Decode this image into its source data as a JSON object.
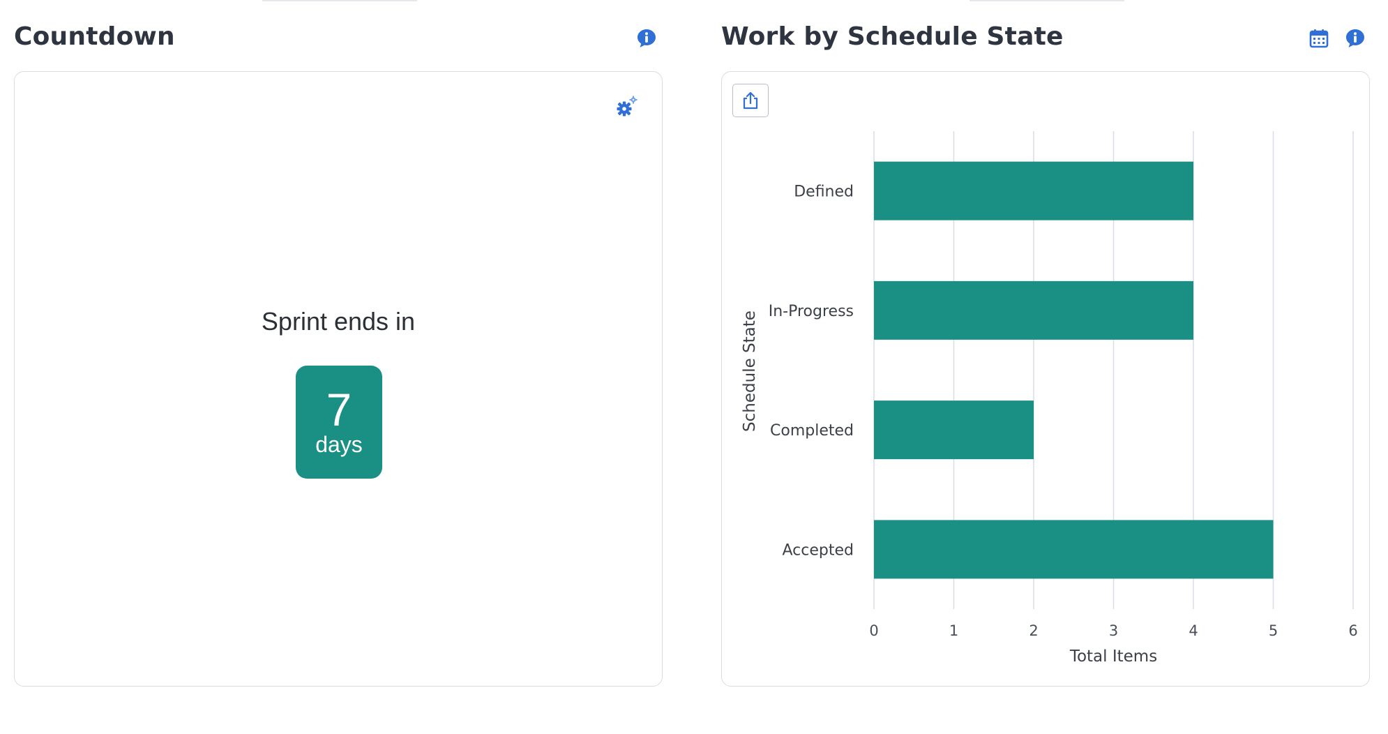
{
  "countdown": {
    "title": "Countdown",
    "label": "Sprint ends in",
    "days_value": "7",
    "days_unit": "days",
    "info_icon": "info-bubble-icon",
    "settings_icon": "gear-icon"
  },
  "schedule": {
    "title": "Work by Schedule State",
    "calendar_icon": "calendar-icon",
    "info_icon": "info-bubble-icon",
    "export_icon": "export-icon"
  },
  "colors": {
    "accent": "#1a8f84",
    "icon_blue": "#2f6fd6",
    "title_text": "#2e3440",
    "border": "#d8dce6"
  },
  "chart_data": {
    "type": "bar",
    "orientation": "horizontal",
    "title": "",
    "categories": [
      "Defined",
      "In-Progress",
      "Completed",
      "Accepted"
    ],
    "values": [
      4,
      4,
      2,
      5
    ],
    "xlabel": "Total Items",
    "ylabel": "Schedule State",
    "xlim": [
      0,
      6
    ],
    "xticks": [
      "0",
      "1",
      "2",
      "3",
      "4",
      "5",
      "6"
    ],
    "grid": true,
    "bar_color": "#1a8f84"
  }
}
